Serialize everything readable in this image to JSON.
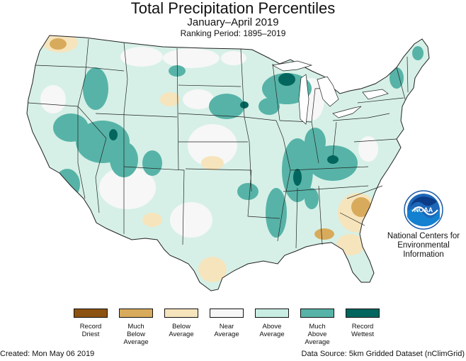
{
  "title": "Total Precipitation Percentiles",
  "subtitle": "January–April 2019",
  "ranking_period": "Ranking Period: 1895–2019",
  "logo": {
    "text": "NOAA",
    "icon": "noaa-logo-icon"
  },
  "organization": "National Centers for\nEnvironmental\nInformation",
  "legend": [
    {
      "label": "Record\nDriest",
      "color": "#8c5210"
    },
    {
      "label": "Much\nBelow\nAverage",
      "color": "#d8ab5c"
    },
    {
      "label": "Below\nAverage",
      "color": "#f6e4bc"
    },
    {
      "label": "Near\nAverage",
      "color": "#f7f7f7"
    },
    {
      "label": "Above\nAverage",
      "color": "#c9ede2"
    },
    {
      "label": "Much\nAbove\nAverage",
      "color": "#57b3a7"
    },
    {
      "label": "Record\nWettest",
      "color": "#03665e"
    }
  ],
  "colors": {
    "land_base": "#d6f0e7",
    "border": "#222222"
  },
  "footer": {
    "created": "Created: Mon May 06 2019",
    "source": "Data Source: 5km Gridded Dataset (nClimGrid)"
  }
}
